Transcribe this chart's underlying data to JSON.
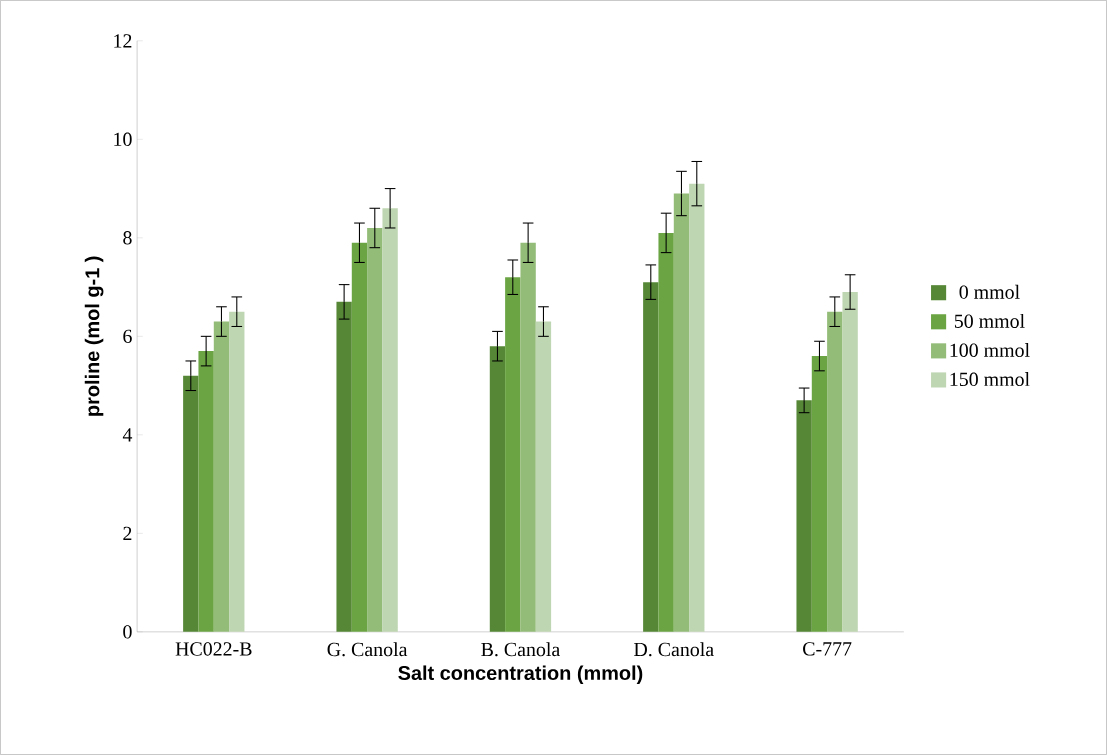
{
  "chart_data": {
    "type": "bar",
    "xlabel": "Salt concentration (mmol)",
    "ylabel": "proline (mol g-1 )",
    "categories": [
      "HC022-B",
      "G. Canola",
      "B. Canola",
      "D. Canola",
      "C-777"
    ],
    "series": [
      {
        "name": "0 mmol",
        "color": "#568736",
        "values": [
          5.2,
          6.7,
          5.8,
          7.1,
          4.7
        ],
        "errors": [
          0.3,
          0.35,
          0.3,
          0.35,
          0.25
        ]
      },
      {
        "name": "50 mmol",
        "color": "#6aa443",
        "values": [
          5.7,
          7.9,
          7.2,
          8.1,
          5.6
        ],
        "errors": [
          0.3,
          0.4,
          0.35,
          0.4,
          0.3
        ]
      },
      {
        "name": "100 mmol",
        "color": "#93bc78",
        "values": [
          6.3,
          8.2,
          7.9,
          8.9,
          6.5
        ],
        "errors": [
          0.3,
          0.4,
          0.4,
          0.45,
          0.3
        ]
      },
      {
        "name": "150 mmol",
        "color": "#bfd6b2",
        "values": [
          6.5,
          8.6,
          6.3,
          9.1,
          6.9
        ],
        "errors": [
          0.3,
          0.4,
          0.3,
          0.45,
          0.35
        ]
      }
    ],
    "ylim": [
      0,
      12
    ],
    "yticks": [
      0,
      2,
      4,
      6,
      8,
      10,
      12
    ],
    "legend": "right",
    "grid": false
  }
}
